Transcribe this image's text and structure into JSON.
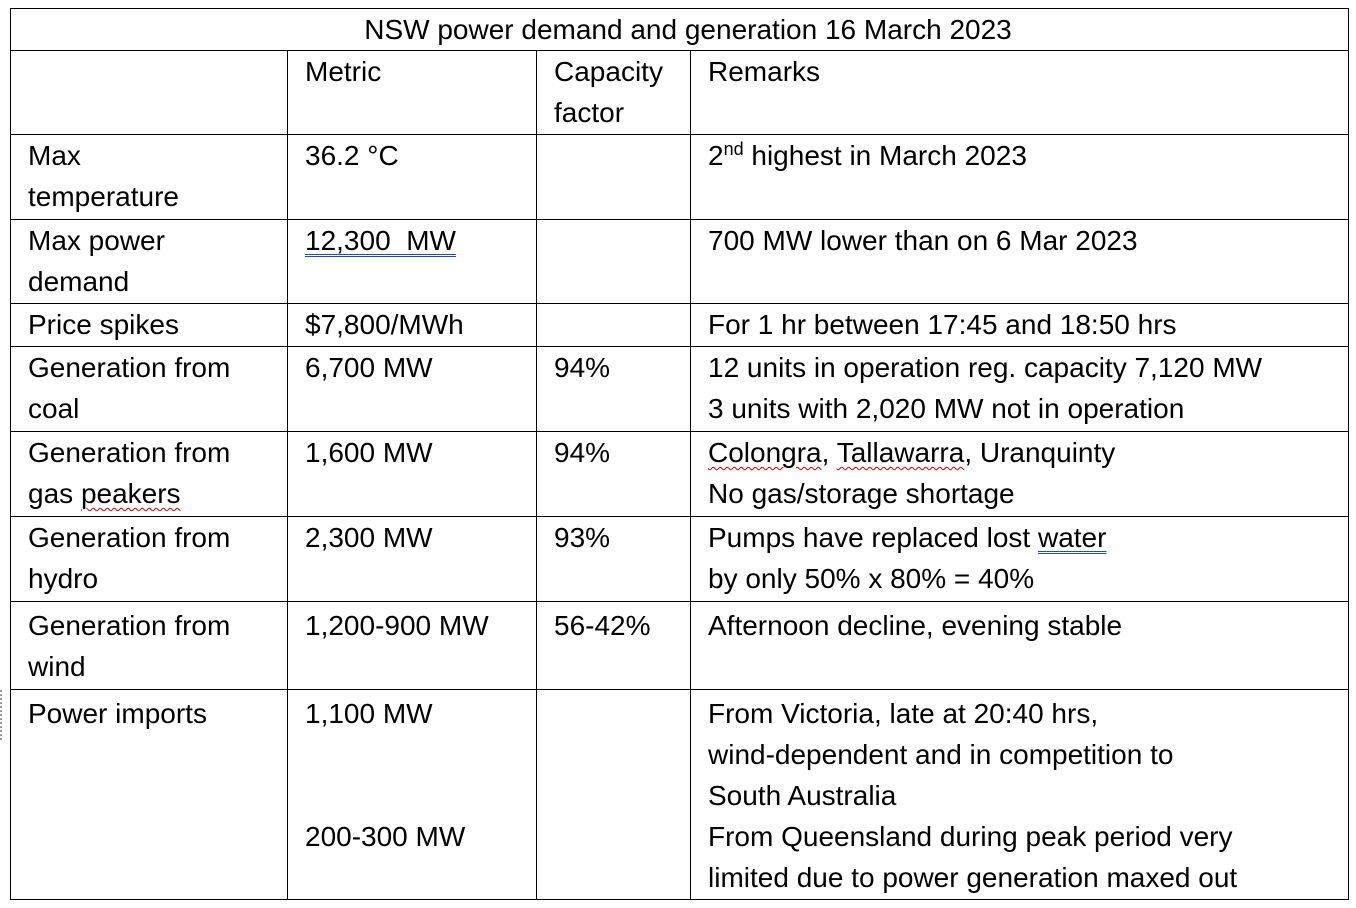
{
  "table": {
    "title": "NSW power demand and generation 16 March 2023",
    "headers": {
      "item": "",
      "metric": "Metric",
      "capacity_factor_line1": "Capacity",
      "capacity_factor_line2": "factor",
      "remarks": "Remarks"
    },
    "rows": [
      {
        "item": [
          "Max",
          "temperature"
        ],
        "metric": [
          "36.2 °C"
        ],
        "capacity_factor": "",
        "remarks_prefix": "2",
        "remarks_sup": "nd",
        "remarks_suffix": " highest in March 2023"
      },
      {
        "item": [
          "Max power",
          "demand"
        ],
        "metric": [
          "12,300  MW"
        ],
        "capacity_factor": "",
        "remarks": [
          "700 MW lower than on 6 Mar 2023"
        ]
      },
      {
        "item": [
          "Price spikes"
        ],
        "metric": [
          "$7,800/MWh"
        ],
        "capacity_factor": "",
        "remarks": [
          "For 1 hr between 17:45 and 18:50 hrs"
        ]
      },
      {
        "item": [
          "Generation from",
          "coal"
        ],
        "metric": [
          "6,700 MW"
        ],
        "capacity_factor": "94%",
        "remarks": [
          "12 units in operation reg. capacity 7,120 MW",
          "3 units with 2,020 MW not in operation"
        ]
      },
      {
        "item_line1": "Generation from",
        "item_line2_plain": "gas ",
        "item_line2_marked": "peakers",
        "metric": [
          "1,600 MW"
        ],
        "capacity_factor": "94%",
        "remarks_line1_a": "Colongra",
        "remarks_line1_b": ", ",
        "remarks_line1_c": "Tallawarra",
        "remarks_line1_d": ", Uranquinty",
        "remarks_line2": "No gas/storage shortage"
      },
      {
        "item": [
          "Generation from",
          "hydro"
        ],
        "metric": [
          "2,300 MW"
        ],
        "capacity_factor": "93%",
        "remarks_line1_plain": "Pumps have replaced lost ",
        "remarks_line1_marked": "water",
        "remarks_line2": "by only 50% x 80% = 40%"
      },
      {
        "item": [
          "Generation from",
          "wind"
        ],
        "metric": [
          "1,200-900 MW"
        ],
        "capacity_factor": "56-42%",
        "remarks": [
          "Afternoon decline, evening stable"
        ]
      },
      {
        "item": [
          "Power imports"
        ],
        "metric": [
          "1,100 MW",
          "200-300 MW"
        ],
        "capacity_factor": "",
        "remarks": [
          "From Victoria, late at 20:40 hrs,",
          "wind-dependent and in competition to",
          "South Australia",
          "From Queensland during peak period very",
          "limited due to power generation maxed out"
        ]
      }
    ]
  }
}
